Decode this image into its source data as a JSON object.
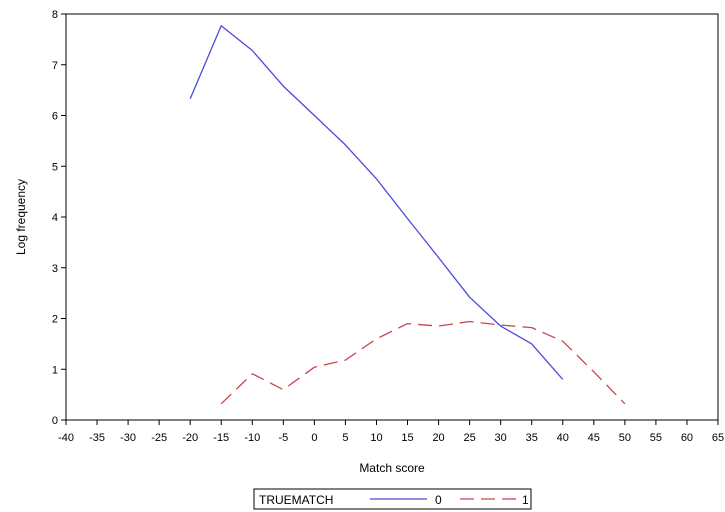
{
  "chart_data": {
    "type": "line",
    "xlabel": "Match score",
    "ylabel": "Log frequency",
    "xlim": [
      -40,
      65
    ],
    "ylim": [
      0,
      8
    ],
    "x_ticks": [
      -40,
      -35,
      -30,
      -25,
      -20,
      -15,
      -10,
      -5,
      0,
      5,
      10,
      15,
      20,
      25,
      30,
      35,
      40,
      45,
      50,
      55,
      60,
      65
    ],
    "y_ticks": [
      0,
      1,
      2,
      3,
      4,
      5,
      6,
      7,
      8
    ],
    "grid": false,
    "legend": {
      "placement": "bottom-center",
      "title": "TRUEMATCH"
    },
    "series": [
      {
        "name": "0",
        "color": "#4b4bdc",
        "line_style": "solid",
        "x": [
          -20,
          -15,
          -10,
          -5,
          0,
          5,
          10,
          15,
          20,
          25,
          30,
          35,
          40
        ],
        "y": [
          6.33,
          7.77,
          7.28,
          6.58,
          6.0,
          5.42,
          4.75,
          3.97,
          3.2,
          2.42,
          1.85,
          1.5,
          0.8
        ]
      },
      {
        "name": "1",
        "color": "#c84650",
        "line_style": "dashed",
        "x": [
          -15,
          -10,
          -5,
          0,
          5,
          10,
          15,
          20,
          25,
          30,
          35,
          40,
          45,
          50
        ],
        "y": [
          0.32,
          0.91,
          0.6,
          1.04,
          1.18,
          1.6,
          1.9,
          1.85,
          1.94,
          1.87,
          1.82,
          1.55,
          0.95,
          0.32
        ]
      }
    ]
  }
}
